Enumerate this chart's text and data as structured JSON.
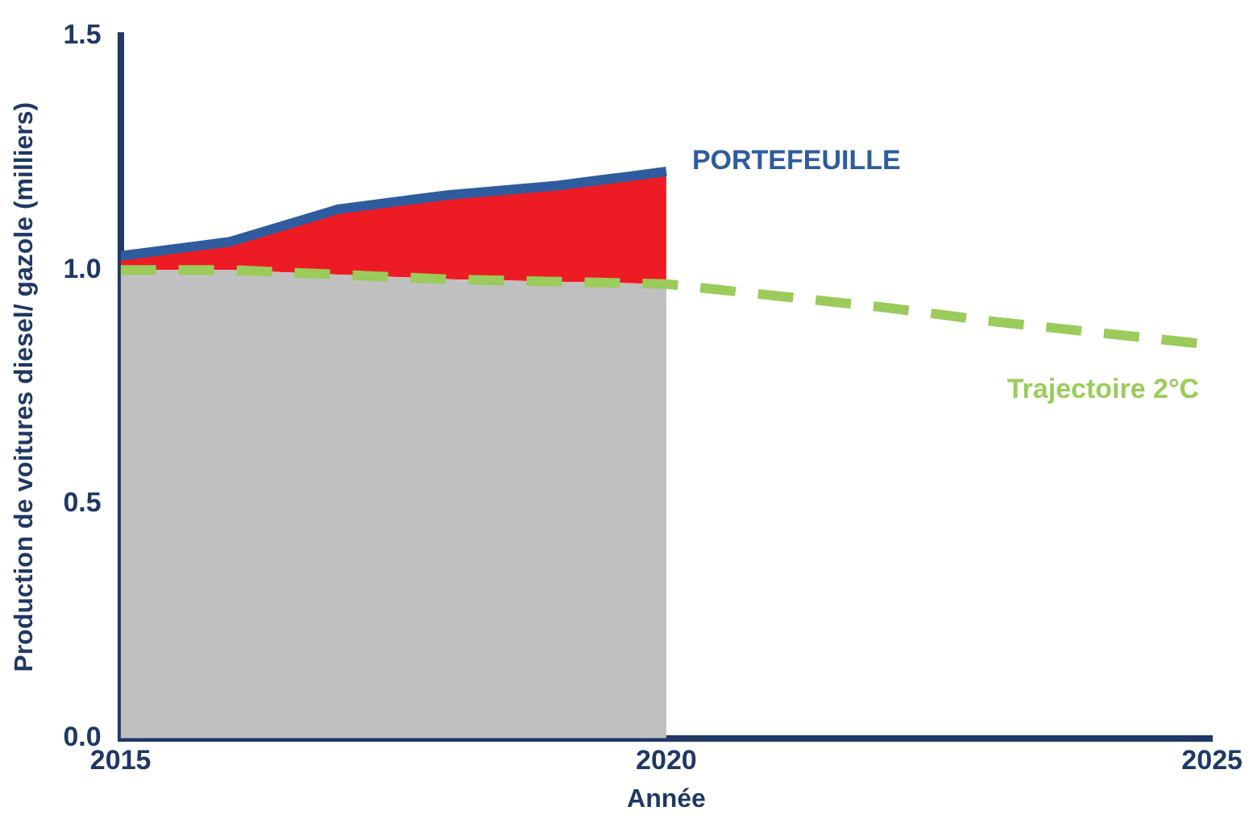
{
  "chart_data": {
    "type": "area",
    "stacked": true,
    "xlabel": "Année",
    "ylabel": "Production de voitures diesel/ gazole (milliers)",
    "x": [
      2015,
      2016,
      2017,
      2018,
      2019,
      2020
    ],
    "xlim": [
      2015,
      2025
    ],
    "xticks": [
      2015,
      2020,
      2025
    ],
    "ylim": [
      0,
      1.5
    ],
    "yticks": [
      {
        "value": 0,
        "label": "0.0"
      },
      0.5,
      {
        "value": 1,
        "label": "1.0"
      },
      1.5
    ],
    "grid": false,
    "legend": false,
    "marker": "none",
    "series": [
      {
        "color": "#c0c0c0",
        "values": [
          1.0,
          1.0,
          0.99,
          0.98,
          0.975,
          0.97
        ]
      },
      {
        "color": "#ed1c24",
        "values": [
          0.03,
          0.06,
          0.14,
          0.18,
          0.205,
          0.24
        ]
      },
      {
        "type": "line",
        "name": "PORTEFEUILLE",
        "color": "#2e5c9e",
        "line_style": "solid",
        "values": [
          1.03,
          1.06,
          1.13,
          1.16,
          1.18,
          1.21
        ]
      },
      {
        "type": "line",
        "name": "Trajectoire 2°C",
        "color": "#9bcb5a",
        "line_style": "dashed",
        "x": [
          2015,
          2016,
          2017,
          2018,
          2019,
          2020,
          2021,
          2022,
          2023,
          2024,
          2025
        ],
        "values": [
          1.0,
          1.0,
          0.99,
          0.98,
          0.975,
          0.97,
          0.945,
          0.92,
          0.89,
          0.865,
          0.84
        ]
      }
    ]
  }
}
